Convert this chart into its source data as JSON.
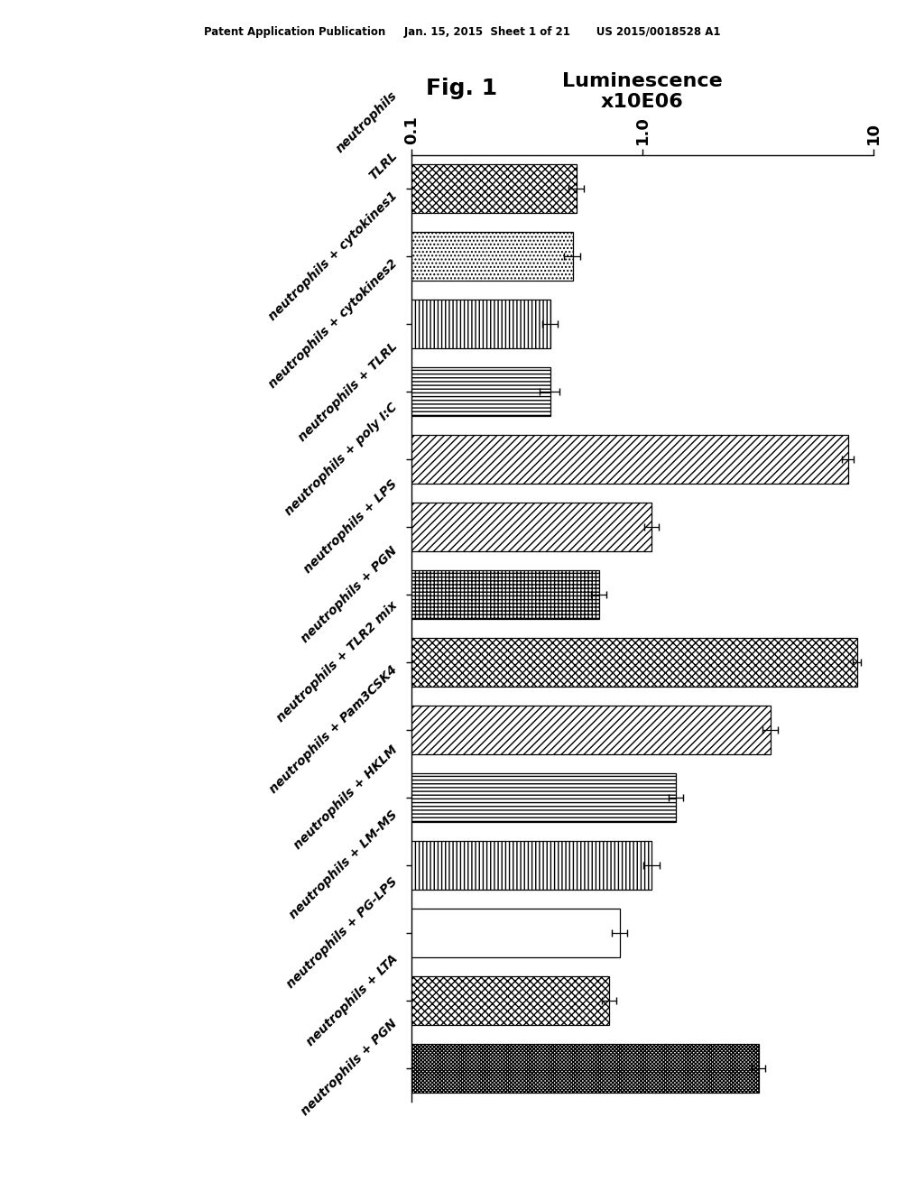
{
  "patent_header": "Patent Application Publication     Jan. 15, 2015  Sheet 1 of 21       US 2015/0018528 A1",
  "fig1_label": "Fig. 1",
  "title_line1": "Luminescence",
  "title_line2": "x10E06",
  "labels": [
    "TLRL\nneutrophils",
    "neutrophils + cytokines1",
    "neutrophils + cytokines2",
    "neutrophils + TLRL",
    "neutrophils + poly I:C",
    "neutrophils + LPS",
    "neutrophils + PGN",
    "neutrophils + TLR2 mix",
    "neutrophils + Pam3CSK4",
    "neutrophils + HKLM",
    "neutrophils + LM-MS",
    "neutrophils + PG-LPS",
    "neutrophils + LTA",
    "neutrophils + PGN"
  ],
  "values": [
    0.52,
    0.5,
    0.4,
    0.4,
    7.8,
    1.1,
    0.65,
    8.5,
    3.6,
    1.4,
    1.1,
    0.8,
    0.72,
    3.2
  ],
  "errors": [
    0.04,
    0.04,
    0.03,
    0.04,
    0.45,
    0.08,
    0.05,
    0.35,
    0.28,
    0.1,
    0.09,
    0.06,
    0.05,
    0.22
  ],
  "hatches": [
    "x",
    ".",
    "|",
    "-",
    "/",
    "/",
    "+",
    "x",
    "/",
    "-",
    "|",
    "#",
    "x",
    "x"
  ],
  "hatch_densities": [
    4,
    4,
    4,
    4,
    4,
    4,
    4,
    4,
    4,
    4,
    4,
    4,
    4,
    8
  ],
  "facecolors": [
    "white",
    "white",
    "white",
    "white",
    "white",
    "white",
    "white",
    "white",
    "white",
    "white",
    "white",
    "white",
    "white",
    "white"
  ],
  "xlim": [
    0.1,
    10
  ],
  "xticks": [
    0.1,
    1.0,
    10
  ],
  "xtick_labels": [
    "0.1",
    "1.0",
    "10"
  ],
  "bar_height": 0.72,
  "background_color": "#ffffff",
  "edgecolor": "black",
  "title_fontsize": 16,
  "label_fontsize": 10,
  "tick_fontsize": 13
}
